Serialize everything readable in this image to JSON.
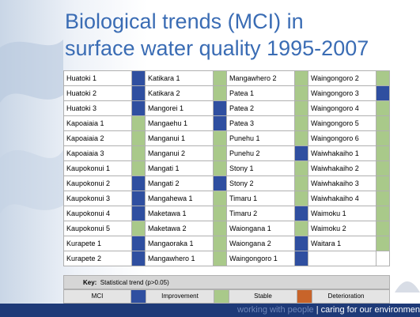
{
  "header": {
    "title_lines": [
      "Biological trends (MCI) in",
      "surface water quality 1995-2007"
    ]
  },
  "table": {
    "columns": [
      [
        {
          "name": "Huatoki 1",
          "color": "#2f4fa0"
        },
        {
          "name": "Huatoki 2",
          "color": "#2f4fa0"
        },
        {
          "name": "Huatoki 3",
          "color": "#2f4fa0"
        },
        {
          "name": "Kapoaiaia 1",
          "color": "#a9c98a"
        },
        {
          "name": "Kapoaiaia 2",
          "color": "#a9c98a"
        },
        {
          "name": "Kapoaiaia 3",
          "color": "#a9c98a"
        },
        {
          "name": "Kaupokonui 1",
          "color": "#a9c98a"
        },
        {
          "name": "Kaupokonui 2",
          "color": "#2f4fa0"
        },
        {
          "name": "Kaupokonui 3",
          "color": "#2f4fa0"
        },
        {
          "name": "Kaupokonui 4",
          "color": "#2f4fa0"
        },
        {
          "name": "Kaupokonui 5",
          "color": "#a9c98a"
        },
        {
          "name": "Kurapete 1",
          "color": "#2f4fa0"
        },
        {
          "name": "Kurapete 2",
          "color": "#2f4fa0"
        }
      ],
      [
        {
          "name": "Katikara 1",
          "color": "#a9c98a"
        },
        {
          "name": "Katikara 2",
          "color": "#a9c98a"
        },
        {
          "name": "Mangorei 1",
          "color": "#2f4fa0"
        },
        {
          "name": "Mangaehu 1",
          "color": "#2f4fa0"
        },
        {
          "name": "Manganui 1",
          "color": "#a9c98a"
        },
        {
          "name": "Manganui 2",
          "color": "#a9c98a"
        },
        {
          "name": "Mangati 1",
          "color": "#a9c98a"
        },
        {
          "name": "Mangati 2",
          "color": "#2f4fa0"
        },
        {
          "name": "Mangahewa 1",
          "color": "#a9c98a"
        },
        {
          "name": "Maketawa 1",
          "color": "#a9c98a"
        },
        {
          "name": "Maketawa 2",
          "color": "#a9c98a"
        },
        {
          "name": "Mangaoraka 1",
          "color": "#a9c98a"
        },
        {
          "name": "Mangawhero 1",
          "color": "#a9c98a"
        }
      ],
      [
        {
          "name": "Mangawhero 2",
          "color": "#a9c98a"
        },
        {
          "name": "Patea 1",
          "color": "#a9c98a"
        },
        {
          "name": "Patea 2",
          "color": "#a9c98a"
        },
        {
          "name": "Patea 3",
          "color": "#a9c98a"
        },
        {
          "name": "Punehu 1",
          "color": "#a9c98a"
        },
        {
          "name": "Punehu 2",
          "color": "#2f4fa0"
        },
        {
          "name": "Stony 1",
          "color": "#a9c98a"
        },
        {
          "name": "Stony 2",
          "color": "#a9c98a"
        },
        {
          "name": "Timaru 1",
          "color": "#a9c98a"
        },
        {
          "name": "Timaru 2",
          "color": "#2f4fa0"
        },
        {
          "name": "Waiongana 1",
          "color": "#a9c98a"
        },
        {
          "name": "Waiongana 2",
          "color": "#2f4fa0"
        },
        {
          "name": "Waingongoro 1",
          "color": "#2f4fa0"
        }
      ],
      [
        {
          "name": "Waingongoro 2",
          "color": "#a9c98a"
        },
        {
          "name": "Waingongoro 3",
          "color": "#2f4fa0"
        },
        {
          "name": "Waingongoro 4",
          "color": "#a9c98a"
        },
        {
          "name": "Waingongoro 5",
          "color": "#a9c98a"
        },
        {
          "name": "Waingongoro 6",
          "color": "#a9c98a"
        },
        {
          "name": "Waiwhakaiho 1",
          "color": "#a9c98a"
        },
        {
          "name": "Waiwhakaiho 2",
          "color": "#a9c98a"
        },
        {
          "name": "Waiwhakaiho 3",
          "color": "#a9c98a"
        },
        {
          "name": "Waiwhakaiho 4",
          "color": "#a9c98a"
        },
        {
          "name": "Waimoku 1",
          "color": "#a9c98a"
        },
        {
          "name": "Waimoku 2",
          "color": "#a9c98a"
        },
        {
          "name": "Waitara 1",
          "color": "#a9c98a"
        },
        {
          "name": null,
          "color": null
        }
      ]
    ]
  },
  "key": {
    "title": "Key:",
    "text": "Statistical trend (p>0.05)",
    "index_label": "MCI",
    "index_color": "#2f4fa0",
    "items": [
      {
        "label": "Improvement",
        "color": "#a9c98a"
      },
      {
        "label": "Stable",
        "color": "#c8642a"
      },
      {
        "label": "Deterioration",
        "color": null
      }
    ]
  },
  "footer": {
    "dim": "working with people",
    "bright": "| caring for our environmen"
  }
}
